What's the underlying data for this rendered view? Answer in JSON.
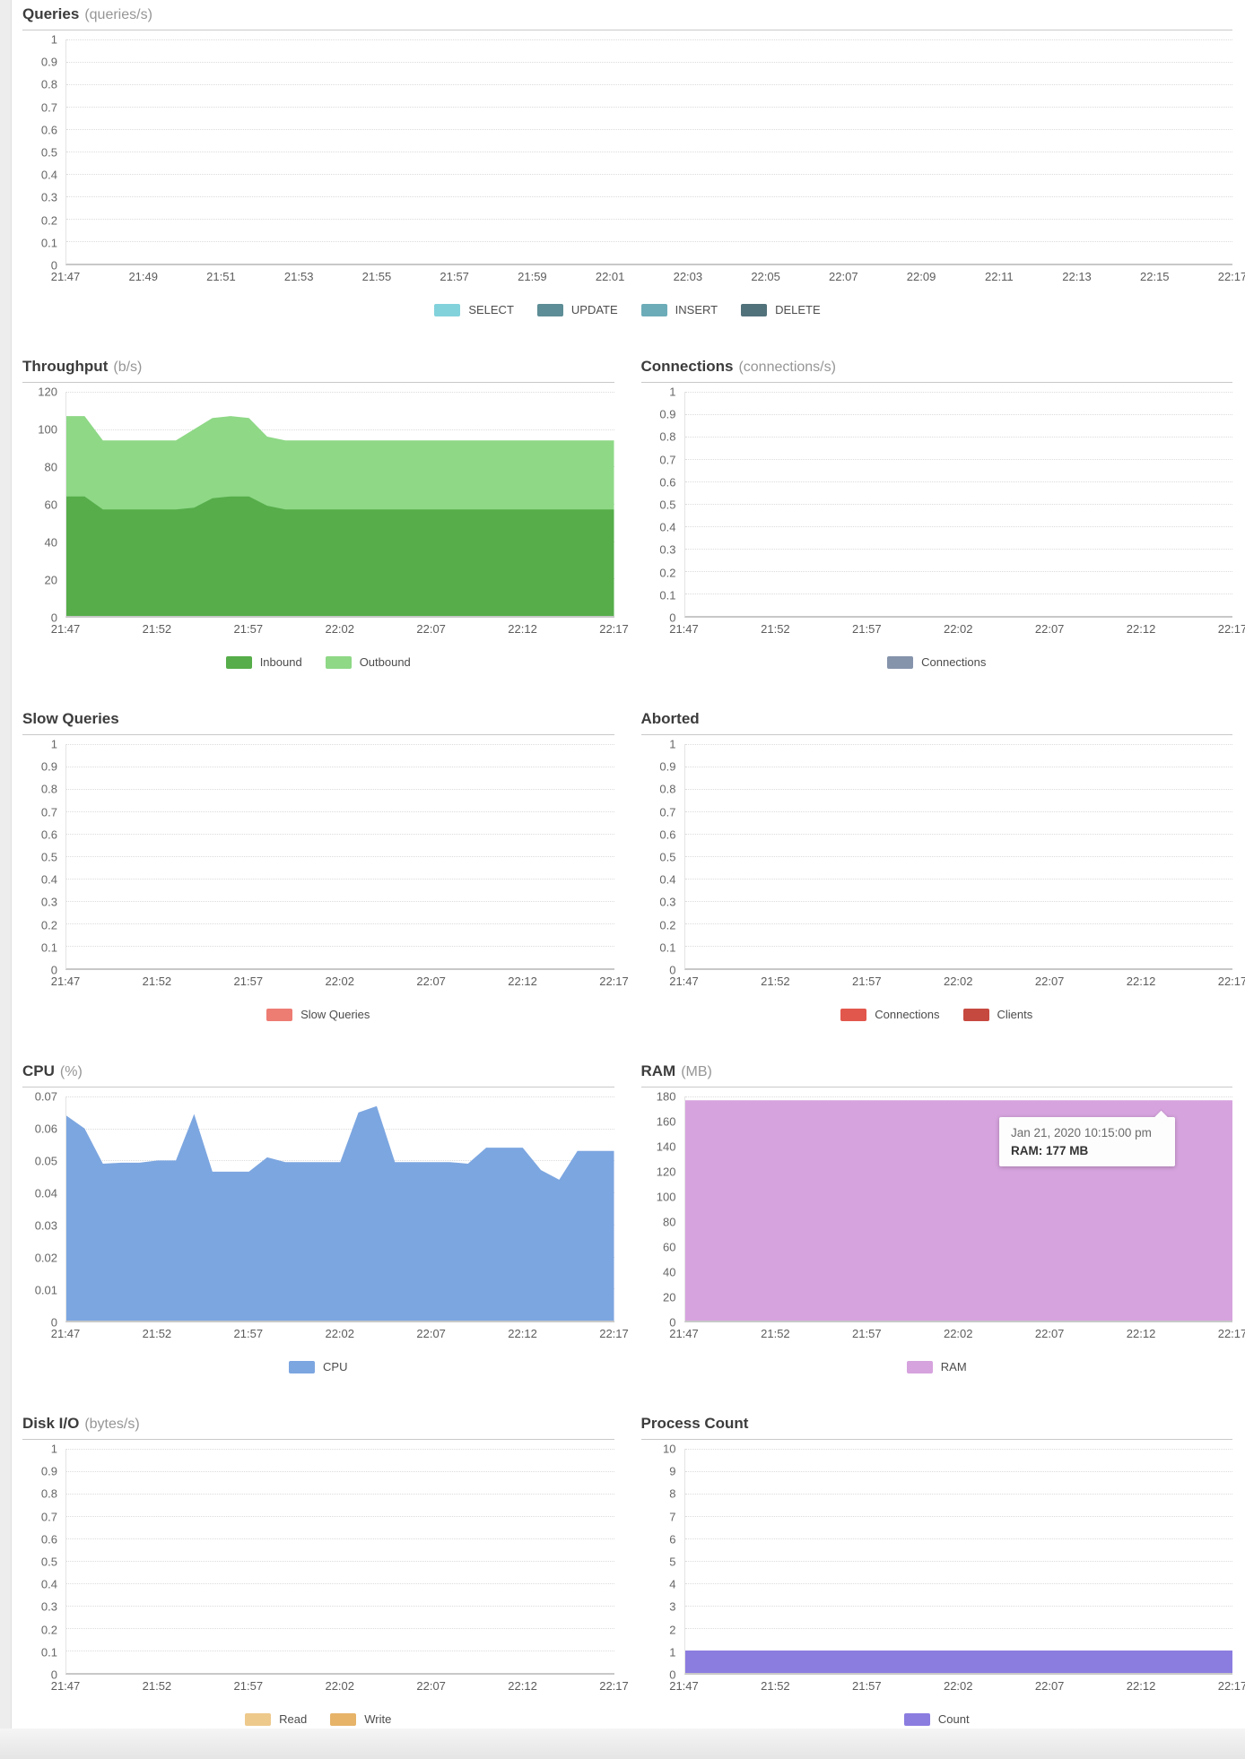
{
  "charts": [
    {
      "title": "Queries",
      "unit": "(queries/s)",
      "yticks": [
        "1",
        "0.9",
        "0.8",
        "0.7",
        "0.6",
        "0.5",
        "0.4",
        "0.3",
        "0.2",
        "0.1",
        "0"
      ],
      "xticks": [
        "21:47",
        "21:49",
        "21:51",
        "21:53",
        "21:55",
        "21:57",
        "21:59",
        "22:01",
        "22:03",
        "22:05",
        "22:07",
        "22:09",
        "22:11",
        "22:13",
        "22:15",
        "22:17"
      ],
      "ylim": [
        0,
        1
      ],
      "stacked": false,
      "series": [],
      "legend": [
        {
          "label": "SELECT",
          "color": "#82d2dc"
        },
        {
          "label": "UPDATE",
          "color": "#5d8d96"
        },
        {
          "label": "INSERT",
          "color": "#6cacb8"
        },
        {
          "label": "DELETE",
          "color": "#52727b"
        }
      ]
    },
    {
      "title": "Throughput",
      "unit": "(b/s)",
      "yticks": [
        "120",
        "100",
        "80",
        "60",
        "40",
        "20",
        "0"
      ],
      "xticks": [
        "21:47",
        "21:52",
        "21:57",
        "22:02",
        "22:07",
        "22:12",
        "22:17"
      ],
      "ylim": [
        0,
        120
      ],
      "stacked": true,
      "series": [
        {
          "name": "Inbound",
          "color": "#56ad4a",
          "values": [
            64,
            64,
            57,
            57,
            57,
            57,
            57,
            58,
            63,
            64,
            64,
            59,
            57,
            57,
            57,
            57,
            57,
            57,
            57,
            57,
            57,
            57,
            57,
            57,
            57,
            57,
            57,
            57,
            57,
            57,
            57
          ]
        },
        {
          "name": "Outbound",
          "color": "#8ed886",
          "values": [
            43,
            43,
            37,
            37,
            37,
            37,
            37,
            42,
            43,
            43,
            42,
            37,
            37,
            37,
            37,
            37,
            37,
            37,
            37,
            37,
            37,
            37,
            37,
            37,
            37,
            37,
            37,
            37,
            37,
            37,
            37
          ]
        }
      ],
      "legend": [
        {
          "label": "Inbound",
          "color": "#56ad4a"
        },
        {
          "label": "Outbound",
          "color": "#8ed886"
        }
      ]
    },
    {
      "title": "Connections",
      "unit": "(connections/s)",
      "yticks": [
        "1",
        "0.9",
        "0.8",
        "0.7",
        "0.6",
        "0.5",
        "0.4",
        "0.3",
        "0.2",
        "0.1",
        "0"
      ],
      "xticks": [
        "21:47",
        "21:52",
        "21:57",
        "22:02",
        "22:07",
        "22:12",
        "22:17"
      ],
      "ylim": [
        0,
        1
      ],
      "stacked": false,
      "series": [],
      "legend": [
        {
          "label": "Connections",
          "color": "#8593ab"
        }
      ]
    },
    {
      "title": "Slow Queries",
      "unit": "",
      "yticks": [
        "1",
        "0.9",
        "0.8",
        "0.7",
        "0.6",
        "0.5",
        "0.4",
        "0.3",
        "0.2",
        "0.1",
        "0"
      ],
      "xticks": [
        "21:47",
        "21:52",
        "21:57",
        "22:02",
        "22:07",
        "22:12",
        "22:17"
      ],
      "ylim": [
        0,
        1
      ],
      "stacked": false,
      "series": [],
      "legend": [
        {
          "label": "Slow Queries",
          "color": "#ed7c73"
        }
      ]
    },
    {
      "title": "Aborted",
      "unit": "",
      "yticks": [
        "1",
        "0.9",
        "0.8",
        "0.7",
        "0.6",
        "0.5",
        "0.4",
        "0.3",
        "0.2",
        "0.1",
        "0"
      ],
      "xticks": [
        "21:47",
        "21:52",
        "21:57",
        "22:02",
        "22:07",
        "22:12",
        "22:17"
      ],
      "ylim": [
        0,
        1
      ],
      "stacked": false,
      "series": [],
      "legend": [
        {
          "label": "Connections",
          "color": "#e2574c"
        },
        {
          "label": "Clients",
          "color": "#c64940"
        }
      ]
    },
    {
      "title": "CPU",
      "unit": "(%)",
      "yticks": [
        "0.07",
        "0.06",
        "0.05",
        "0.04",
        "0.03",
        "0.02",
        "0.01",
        "0"
      ],
      "xticks": [
        "21:47",
        "21:52",
        "21:57",
        "22:02",
        "22:07",
        "22:12",
        "22:17"
      ],
      "ylim": [
        0,
        0.07
      ],
      "stacked": false,
      "series": [
        {
          "name": "CPU",
          "color": "#7ca6e0",
          "values": [
            0.064,
            0.06,
            0.049,
            0.0493,
            0.0493,
            0.05,
            0.05,
            0.0645,
            0.0465,
            0.0465,
            0.0465,
            0.051,
            0.0495,
            0.0495,
            0.0495,
            0.0495,
            0.065,
            0.067,
            0.0495,
            0.0495,
            0.0495,
            0.0495,
            0.049,
            0.054,
            0.054,
            0.054,
            0.047,
            0.044,
            0.053,
            0.053,
            0.053
          ]
        }
      ],
      "legend": [
        {
          "label": "CPU",
          "color": "#7ca6e0"
        }
      ]
    },
    {
      "title": "RAM",
      "unit": "(MB)",
      "yticks": [
        "180",
        "160",
        "140",
        "120",
        "100",
        "80",
        "60",
        "40",
        "20",
        "0"
      ],
      "xticks": [
        "21:47",
        "21:52",
        "21:57",
        "22:02",
        "22:07",
        "22:12",
        "22:17"
      ],
      "ylim": [
        0,
        180
      ],
      "stacked": false,
      "series": [
        {
          "name": "RAM",
          "color": "#d6a3de",
          "values": [
            177,
            177
          ]
        }
      ],
      "legend": [
        {
          "label": "RAM",
          "color": "#d6a3de"
        }
      ],
      "tooltip": {
        "date": "Jan 21, 2020 10:15:00 pm",
        "value": "RAM: 177 MB"
      }
    },
    {
      "title": "Disk I/O",
      "unit": "(bytes/s)",
      "yticks": [
        "1",
        "0.9",
        "0.8",
        "0.7",
        "0.6",
        "0.5",
        "0.4",
        "0.3",
        "0.2",
        "0.1",
        "0"
      ],
      "xticks": [
        "21:47",
        "21:52",
        "21:57",
        "22:02",
        "22:07",
        "22:12",
        "22:17"
      ],
      "ylim": [
        0,
        1
      ],
      "stacked": false,
      "series": [],
      "legend": [
        {
          "label": "Read",
          "color": "#eec98c"
        },
        {
          "label": "Write",
          "color": "#e6b369"
        }
      ]
    },
    {
      "title": "Process Count",
      "unit": "",
      "yticks": [
        "10",
        "9",
        "8",
        "7",
        "6",
        "5",
        "4",
        "3",
        "2",
        "1",
        "0"
      ],
      "xticks": [
        "21:47",
        "21:52",
        "21:57",
        "22:02",
        "22:07",
        "22:12",
        "22:17"
      ],
      "ylim": [
        0,
        10
      ],
      "stacked": false,
      "series": [
        {
          "name": "Count",
          "color": "#8b7ce0",
          "values": [
            1,
            1
          ]
        }
      ],
      "legend": [
        {
          "label": "Count",
          "color": "#8b7ce0"
        }
      ]
    }
  ]
}
